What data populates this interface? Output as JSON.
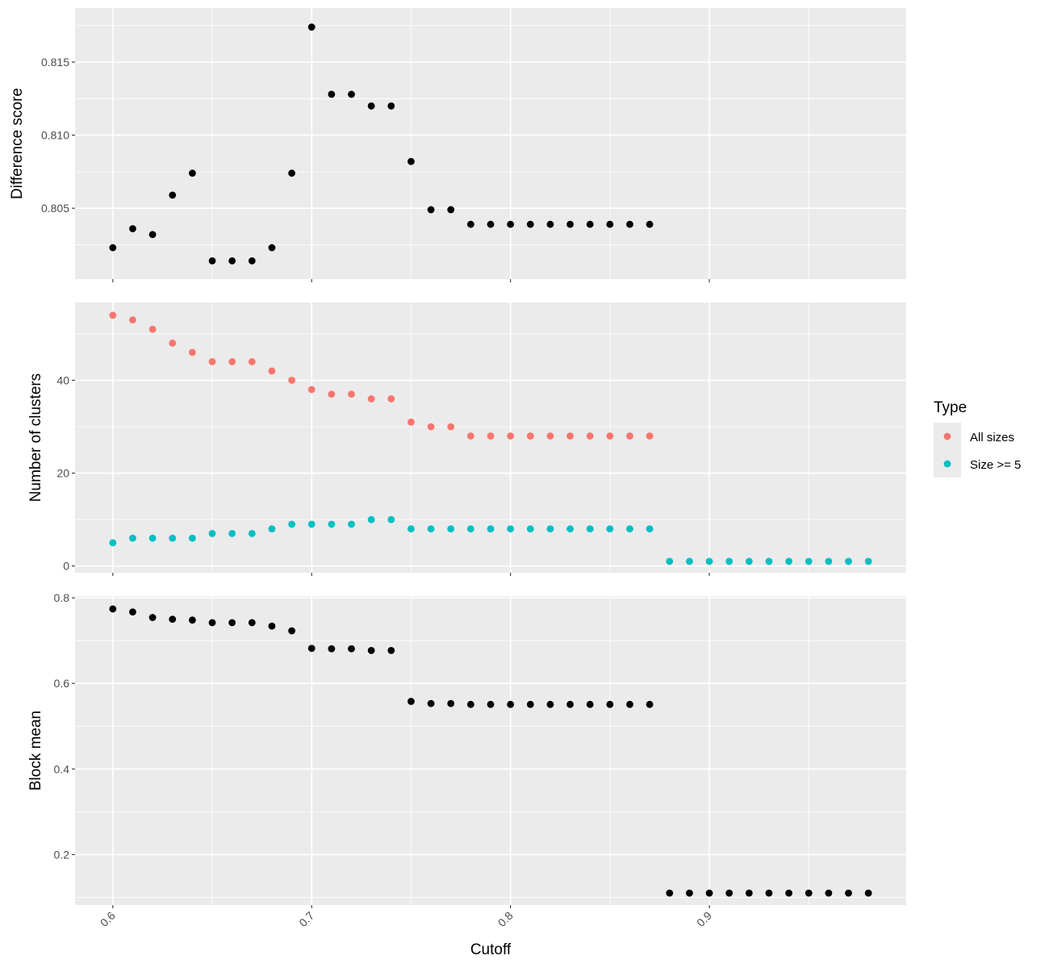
{
  "chart_data": {
    "type": "scatter",
    "xlabel": "Cutoff",
    "x_ticks": [
      0.6,
      0.7,
      0.8,
      0.9
    ],
    "x_tick_labels": [
      "0.6",
      "0.7",
      "0.8",
      "0.9"
    ],
    "xlim": [
      0.581,
      0.999
    ],
    "legend": {
      "title": "Type",
      "placement": "right",
      "entries": [
        {
          "name": "All sizes",
          "color": "#F8766D"
        },
        {
          "name": "Size >= 5",
          "color": "#00BFC4"
        }
      ]
    },
    "panels": [
      {
        "ylabel": "Difference score",
        "ylim": [
          0.80015,
          0.8187
        ],
        "y_ticks": [
          0.805,
          0.81,
          0.815
        ],
        "y_tick_labels": [
          "0.805",
          "0.810",
          "0.815"
        ],
        "series": [
          {
            "color": "#000000",
            "x": [
              0.6,
              0.61,
              0.62,
              0.63,
              0.64,
              0.65,
              0.66,
              0.67,
              0.68,
              0.69,
              0.7,
              0.71,
              0.72,
              0.73,
              0.74,
              0.75,
              0.76,
              0.77,
              0.78,
              0.79,
              0.8,
              0.81,
              0.82,
              0.83,
              0.84,
              0.85,
              0.86,
              0.87
            ],
            "y": [
              0.8023,
              0.8036,
              0.8032,
              0.8059,
              0.8074,
              0.8014,
              0.8014,
              0.8014,
              0.8023,
              0.8074,
              0.8174,
              0.8128,
              0.8128,
              0.812,
              0.812,
              0.8082,
              0.8049,
              0.8049,
              0.8039,
              0.8039,
              0.8039,
              0.8039,
              0.8039,
              0.8039,
              0.8039,
              0.8039,
              0.8039,
              0.8039
            ]
          }
        ]
      },
      {
        "ylabel": "Number of clusters",
        "ylim": [
          -1.45,
          56.75
        ],
        "y_ticks": [
          0,
          20,
          40
        ],
        "y_tick_labels": [
          "0",
          "20",
          "40"
        ],
        "series": [
          {
            "name": "All sizes",
            "color": "#F8766D",
            "x": [
              0.6,
              0.61,
              0.62,
              0.63,
              0.64,
              0.65,
              0.66,
              0.67,
              0.68,
              0.69,
              0.7,
              0.71,
              0.72,
              0.73,
              0.74,
              0.75,
              0.76,
              0.77,
              0.78,
              0.79,
              0.8,
              0.81,
              0.82,
              0.83,
              0.84,
              0.85,
              0.86,
              0.87
            ],
            "y": [
              54,
              53,
              51,
              48,
              46,
              44,
              44,
              44,
              42,
              40,
              38,
              37,
              37,
              36,
              36,
              31,
              30,
              30,
              28,
              28,
              28,
              28,
              28,
              28,
              28,
              28,
              28,
              28
            ]
          },
          {
            "name": "Size >= 5",
            "color": "#00BFC4",
            "x": [
              0.6,
              0.61,
              0.62,
              0.63,
              0.64,
              0.65,
              0.66,
              0.67,
              0.68,
              0.69,
              0.7,
              0.71,
              0.72,
              0.73,
              0.74,
              0.75,
              0.76,
              0.77,
              0.78,
              0.79,
              0.8,
              0.81,
              0.82,
              0.83,
              0.84,
              0.85,
              0.86,
              0.87,
              0.88,
              0.89,
              0.9,
              0.91,
              0.92,
              0.93,
              0.94,
              0.95,
              0.96,
              0.97,
              0.98
            ],
            "y": [
              5,
              6,
              6,
              6,
              6,
              7,
              7,
              7,
              8,
              9,
              9,
              9,
              9,
              10,
              10,
              8,
              8,
              8,
              8,
              8,
              8,
              8,
              8,
              8,
              8,
              8,
              8,
              8,
              1,
              1,
              1,
              1,
              1,
              1,
              1,
              1,
              1,
              1,
              1
            ]
          }
        ]
      },
      {
        "ylabel": "Block mean",
        "ylim": [
          0.082,
          0.804
        ],
        "y_ticks": [
          0.2,
          0.4,
          0.6,
          0.8
        ],
        "y_tick_labels": [
          "0.2",
          "0.4",
          "0.6",
          "0.8"
        ],
        "series": [
          {
            "color": "#000000",
            "x": [
              0.6,
              0.61,
              0.62,
              0.63,
              0.64,
              0.65,
              0.66,
              0.67,
              0.68,
              0.69,
              0.7,
              0.71,
              0.72,
              0.73,
              0.74,
              0.75,
              0.76,
              0.77,
              0.78,
              0.79,
              0.8,
              0.81,
              0.82,
              0.83,
              0.84,
              0.85,
              0.86,
              0.87,
              0.88,
              0.89,
              0.9,
              0.91,
              0.92,
              0.93,
              0.94,
              0.95,
              0.96,
              0.97,
              0.98
            ],
            "y": [
              0.774,
              0.767,
              0.754,
              0.75,
              0.748,
              0.742,
              0.742,
              0.742,
              0.734,
              0.723,
              0.682,
              0.681,
              0.681,
              0.677,
              0.677,
              0.558,
              0.553,
              0.553,
              0.551,
              0.551,
              0.551,
              0.551,
              0.551,
              0.551,
              0.551,
              0.551,
              0.551,
              0.551,
              0.11,
              0.11,
              0.11,
              0.11,
              0.11,
              0.11,
              0.11,
              0.11,
              0.11,
              0.11,
              0.11
            ]
          }
        ]
      }
    ]
  }
}
